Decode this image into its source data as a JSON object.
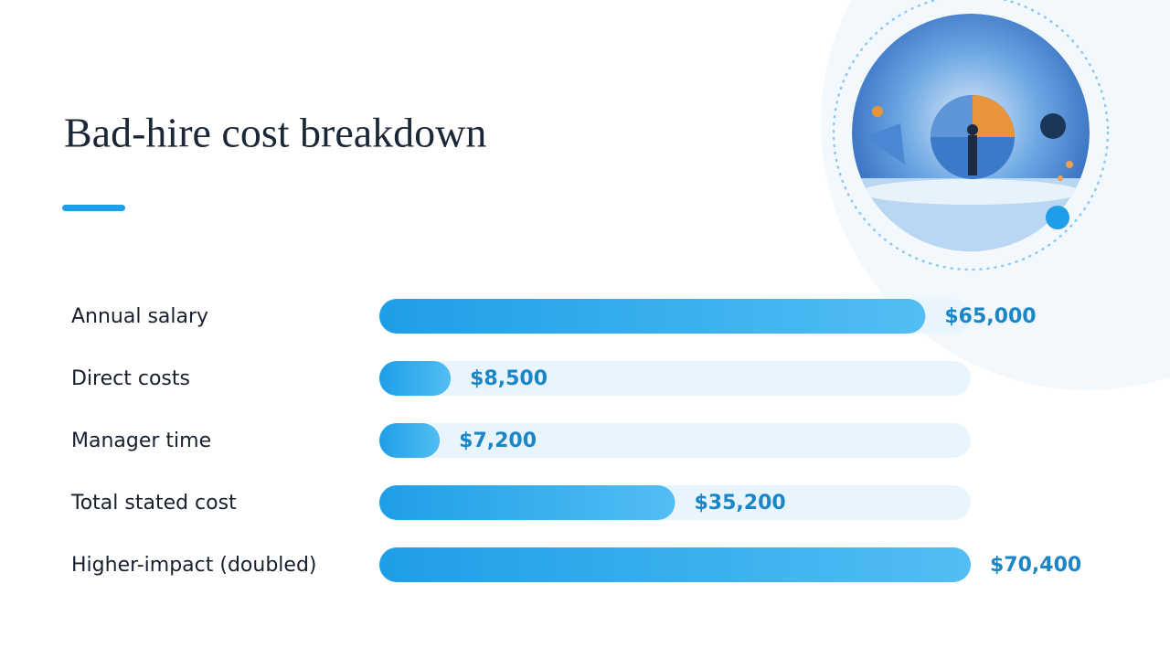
{
  "chart_data": {
    "type": "bar",
    "orientation": "horizontal",
    "title": "Bad-hire cost breakdown",
    "categories": [
      "Annual salary",
      "Direct costs",
      "Manager time",
      "Total stated cost",
      "Higher-impact (doubled)"
    ],
    "values": [
      65000,
      8500,
      7200,
      35200,
      70400
    ],
    "value_labels": [
      "$65,000",
      "$8,500",
      "$7,200",
      "$35,200",
      "$70,400"
    ],
    "color": "#1e9ee8",
    "xlim": [
      0,
      70400
    ]
  }
}
